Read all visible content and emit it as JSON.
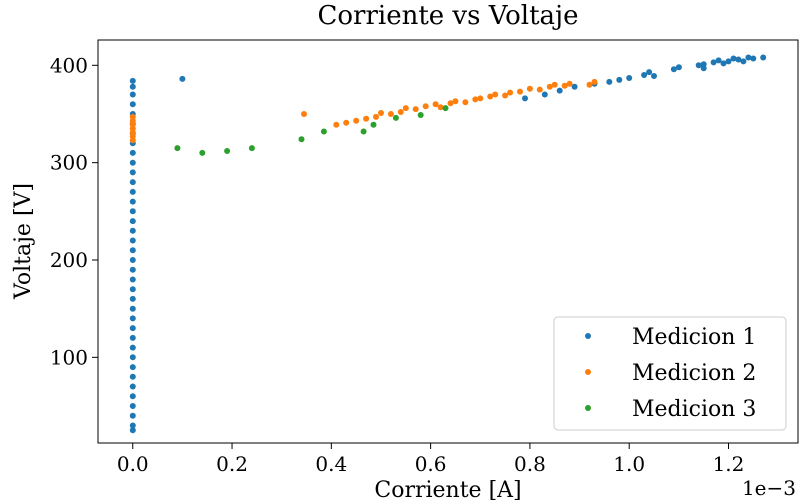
{
  "chart_data": {
    "type": "scatter",
    "title": "Corriente vs Voltaje",
    "xlabel": "Corriente [A]",
    "ylabel": "Voltaje [V]",
    "x_offset_label": "1e−3",
    "xlim": [
      -0.07,
      1.34
    ],
    "ylim": [
      12,
      426
    ],
    "x_ticks": [
      0.0,
      0.2,
      0.4,
      0.6,
      0.8,
      1.0,
      1.2
    ],
    "x_tick_labels": [
      "0.0",
      "0.2",
      "0.4",
      "0.6",
      "0.8",
      "1.0",
      "1.2"
    ],
    "y_ticks": [
      100,
      200,
      300,
      400
    ],
    "y_tick_labels": [
      "100",
      "200",
      "300",
      "400"
    ],
    "grid": false,
    "legend_position": "bottom-right",
    "series": [
      {
        "name": "Medicion 1",
        "color": "#1f77b4",
        "points": [
          [
            0.0,
            25
          ],
          [
            0.0,
            30
          ],
          [
            0.0,
            40
          ],
          [
            0.0,
            50
          ],
          [
            0.0,
            60
          ],
          [
            0.0,
            70
          ],
          [
            0.0,
            80
          ],
          [
            0.0,
            90
          ],
          [
            0.0,
            100
          ],
          [
            0.0,
            110
          ],
          [
            0.0,
            120
          ],
          [
            0.0,
            130
          ],
          [
            0.0,
            140
          ],
          [
            0.0,
            150
          ],
          [
            0.0,
            160
          ],
          [
            0.0,
            170
          ],
          [
            0.0,
            180
          ],
          [
            0.0,
            190
          ],
          [
            0.0,
            200
          ],
          [
            0.0,
            210
          ],
          [
            0.0,
            220
          ],
          [
            0.0,
            230
          ],
          [
            0.0,
            240
          ],
          [
            0.0,
            250
          ],
          [
            0.0,
            260
          ],
          [
            0.0,
            270
          ],
          [
            0.0,
            280
          ],
          [
            0.0,
            290
          ],
          [
            0.0,
            300
          ],
          [
            0.0,
            310
          ],
          [
            0.0,
            320
          ],
          [
            0.0,
            330
          ],
          [
            0.0,
            340
          ],
          [
            0.0,
            350
          ],
          [
            0.0,
            360
          ],
          [
            0.0,
            370
          ],
          [
            0.0,
            378
          ],
          [
            0.0,
            384
          ],
          [
            0.1,
            386
          ],
          [
            0.79,
            366
          ],
          [
            0.83,
            370
          ],
          [
            0.86,
            374
          ],
          [
            0.89,
            378
          ],
          [
            0.93,
            381
          ],
          [
            0.96,
            383
          ],
          [
            0.98,
            385
          ],
          [
            1.0,
            387
          ],
          [
            1.03,
            390
          ],
          [
            1.04,
            393
          ],
          [
            1.05,
            389
          ],
          [
            1.09,
            396
          ],
          [
            1.1,
            398
          ],
          [
            1.14,
            400
          ],
          [
            1.15,
            397
          ],
          [
            1.15,
            401
          ],
          [
            1.17,
            403
          ],
          [
            1.18,
            405
          ],
          [
            1.19,
            402
          ],
          [
            1.2,
            404
          ],
          [
            1.21,
            407
          ],
          [
            1.22,
            406
          ],
          [
            1.23,
            404
          ],
          [
            1.24,
            408
          ],
          [
            1.25,
            407
          ],
          [
            1.27,
            408
          ]
        ]
      },
      {
        "name": "Medicion 2",
        "color": "#ff7f0e",
        "points": [
          [
            0.0,
            323
          ],
          [
            0.0,
            327
          ],
          [
            0.0,
            331
          ],
          [
            0.0,
            335
          ],
          [
            0.0,
            339
          ],
          [
            0.0,
            343
          ],
          [
            0.0,
            347
          ],
          [
            0.345,
            350
          ],
          [
            0.41,
            339
          ],
          [
            0.43,
            341
          ],
          [
            0.45,
            343
          ],
          [
            0.47,
            345
          ],
          [
            0.49,
            347
          ],
          [
            0.5,
            351
          ],
          [
            0.52,
            350
          ],
          [
            0.54,
            352
          ],
          [
            0.55,
            356
          ],
          [
            0.57,
            355
          ],
          [
            0.59,
            358
          ],
          [
            0.61,
            360
          ],
          [
            0.62,
            357
          ],
          [
            0.64,
            361
          ],
          [
            0.65,
            363
          ],
          [
            0.67,
            362
          ],
          [
            0.69,
            365
          ],
          [
            0.7,
            366
          ],
          [
            0.72,
            368
          ],
          [
            0.73,
            370
          ],
          [
            0.75,
            369
          ],
          [
            0.76,
            372
          ],
          [
            0.78,
            373
          ],
          [
            0.8,
            376
          ],
          [
            0.82,
            375
          ],
          [
            0.84,
            378
          ],
          [
            0.85,
            380
          ],
          [
            0.87,
            379
          ],
          [
            0.88,
            381
          ],
          [
            0.92,
            380
          ],
          [
            0.93,
            383
          ]
        ]
      },
      {
        "name": "Medicion 3",
        "color": "#2ca02c",
        "points": [
          [
            0.09,
            315
          ],
          [
            0.14,
            310
          ],
          [
            0.19,
            312
          ],
          [
            0.24,
            315
          ],
          [
            0.34,
            324
          ],
          [
            0.385,
            332
          ],
          [
            0.465,
            332
          ],
          [
            0.485,
            339
          ],
          [
            0.53,
            346
          ],
          [
            0.58,
            349
          ],
          [
            0.63,
            356
          ]
        ]
      }
    ]
  }
}
